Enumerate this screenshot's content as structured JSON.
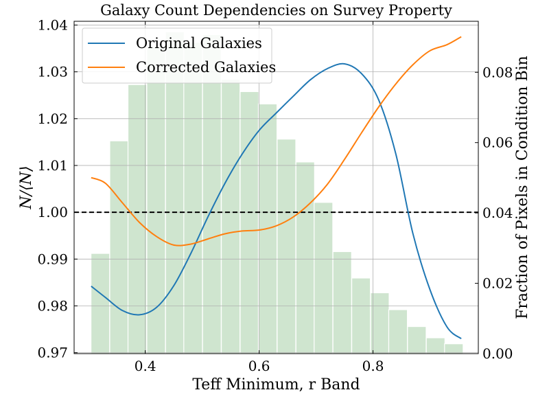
{
  "chart_data": {
    "type": "line",
    "title": "Galaxy Count Dependencies on Survey Property",
    "xlabel": "Teff Minimum, r Band",
    "ylabel": "N/⟨N⟩",
    "ylabel_right": "Fraction of Pixels in Condition Bin",
    "xlim": [
      0.275,
      0.985
    ],
    "ylim": [
      0.9698,
      1.0408
    ],
    "ylim_right": [
      0.0,
      0.0945
    ],
    "x_ticks": [
      0.4,
      0.6,
      0.8
    ],
    "x_tick_labels": [
      "0.4",
      "0.6",
      "0.8"
    ],
    "y_ticks": [
      0.97,
      0.98,
      0.99,
      1.0,
      1.01,
      1.02,
      1.03,
      1.04
    ],
    "y_tick_labels": [
      "0.97",
      "0.98",
      "0.99",
      "1.00",
      "1.01",
      "1.02",
      "1.03",
      "1.04"
    ],
    "y_right_ticks": [
      0.0,
      0.02,
      0.04,
      0.06,
      0.08
    ],
    "y_right_tick_labels": [
      "0.00",
      "0.02",
      "0.04",
      "0.06",
      "0.08"
    ],
    "grid": true,
    "legend_position": "top-left",
    "reference_line": {
      "y": 1.0,
      "style": "dashed",
      "color": "#000000"
    },
    "histogram": {
      "color": "#cfe5cf",
      "bin_width": 0.0327,
      "centers": [
        0.321,
        0.354,
        0.386,
        0.419,
        0.452,
        0.484,
        0.517,
        0.55,
        0.583,
        0.615,
        0.648,
        0.681,
        0.713,
        0.746,
        0.779,
        0.812,
        0.844,
        0.877,
        0.91,
        0.942
      ],
      "values": [
        0.0285,
        0.0605,
        0.0765,
        0.0873,
        0.0915,
        0.0885,
        0.0907,
        0.078,
        0.0745,
        0.071,
        0.061,
        0.0545,
        0.043,
        0.029,
        0.0215,
        0.0173,
        0.0125,
        0.0077,
        0.0045,
        0.0028
      ]
    },
    "series": [
      {
        "name": "Original Galaxies",
        "color": "#1f77b4",
        "x": [
          0.305,
          0.33,
          0.36,
          0.39,
          0.42,
          0.45,
          0.48,
          0.51,
          0.54,
          0.57,
          0.6,
          0.63,
          0.66,
          0.69,
          0.72,
          0.75,
          0.78,
          0.81,
          0.84,
          0.87,
          0.9,
          0.93,
          0.955
        ],
        "y": [
          0.9842,
          0.9818,
          0.979,
          0.9781,
          0.9797,
          0.9843,
          0.9912,
          0.999,
          1.0062,
          1.0124,
          1.0175,
          1.0212,
          1.0248,
          1.0283,
          1.0307,
          1.0317,
          1.0296,
          1.024,
          1.0125,
          0.9955,
          0.9835,
          0.9755,
          0.973
        ]
      },
      {
        "name": "Corrected Galaxies",
        "color": "#ff7f0e",
        "x": [
          0.305,
          0.33,
          0.36,
          0.39,
          0.42,
          0.45,
          0.48,
          0.51,
          0.54,
          0.57,
          0.6,
          0.63,
          0.66,
          0.69,
          0.72,
          0.75,
          0.78,
          0.81,
          0.84,
          0.87,
          0.9,
          0.93,
          0.955
        ],
        "y": [
          1.0074,
          1.0062,
          1.002,
          0.9978,
          0.9948,
          0.993,
          0.9932,
          0.9943,
          0.9954,
          0.996,
          0.9962,
          0.9971,
          0.999,
          1.002,
          1.006,
          1.0113,
          1.017,
          1.0225,
          1.0274,
          1.0315,
          1.0345,
          1.0358,
          1.0375
        ]
      }
    ]
  }
}
